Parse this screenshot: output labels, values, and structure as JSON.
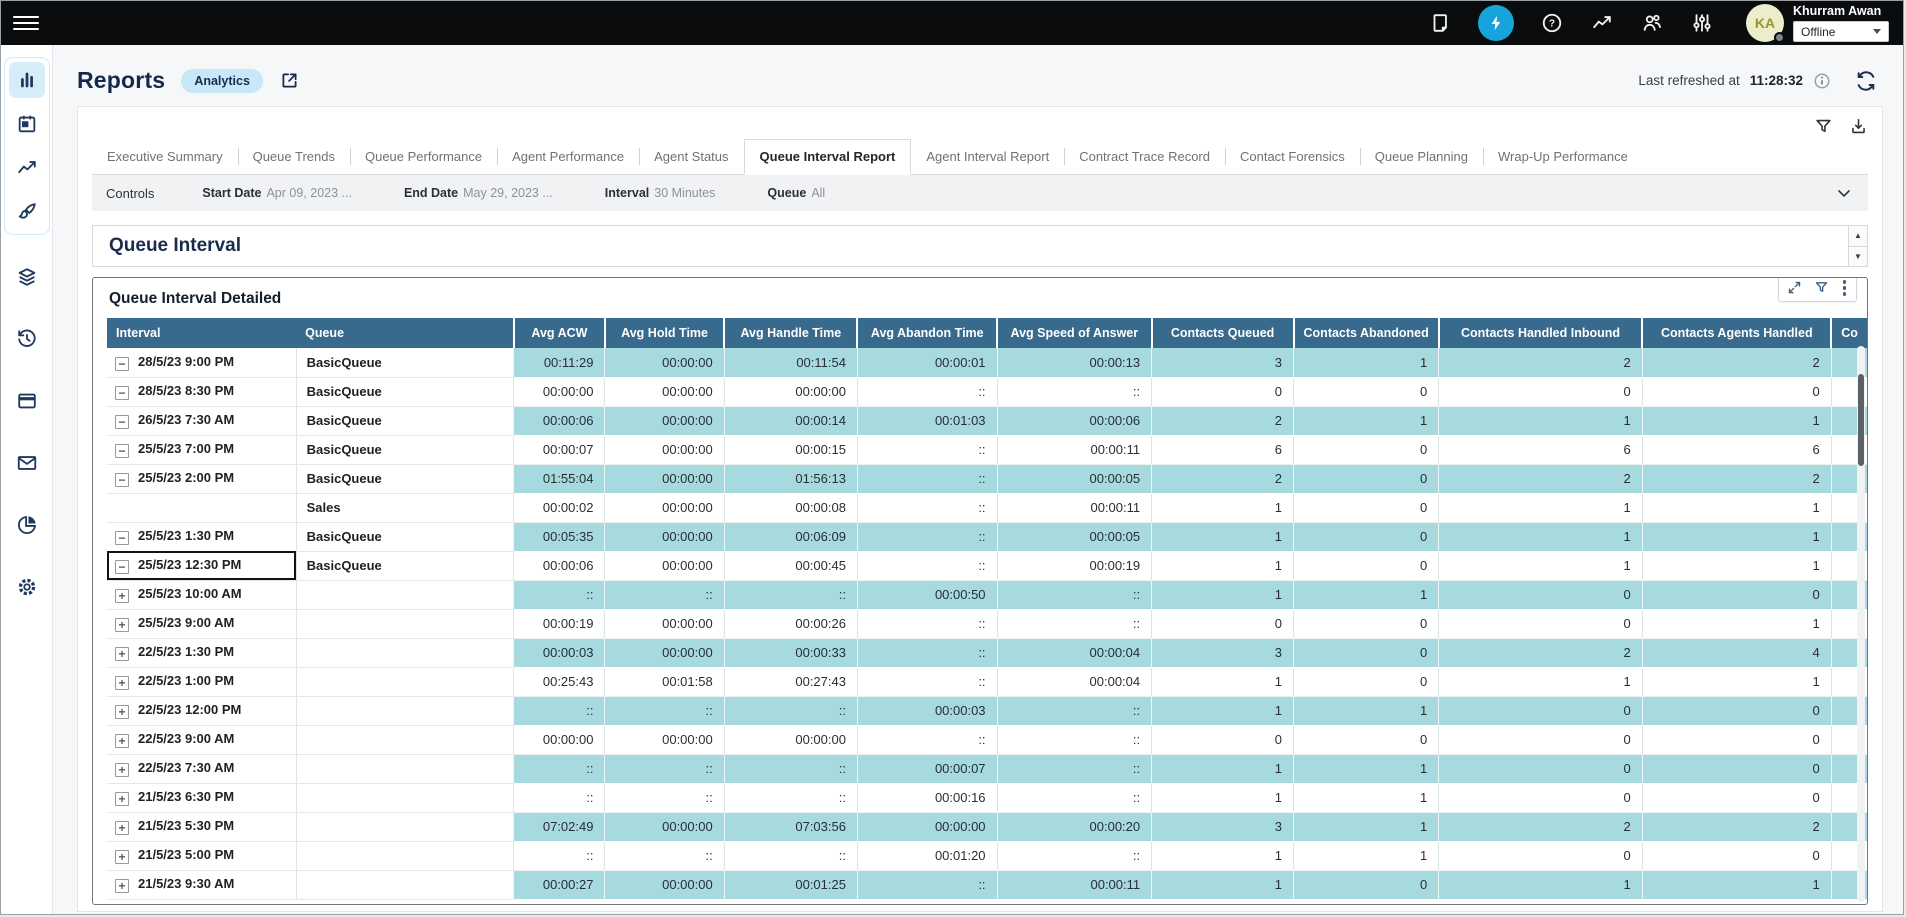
{
  "topbar": {
    "icons": [
      "notes-icon",
      "boost-lightning-icon",
      "help-icon",
      "metrics-icon",
      "users-icon",
      "sliders-icon"
    ],
    "user": {
      "initials": "KA",
      "name": "Khurram Awan",
      "status": "Offline"
    }
  },
  "sidebar": {
    "icons": [
      "bar-chart-icon",
      "calendar-icon",
      "line-chart-icon",
      "design-brush-icon",
      "layers-icon",
      "history-icon",
      "window-icon",
      "mail-icon",
      "pie-chart-icon",
      "gear-icon"
    ]
  },
  "header": {
    "title": "Reports",
    "badge": "Analytics",
    "last_refreshed_label": "Last refreshed at",
    "last_refreshed_time": "11:28:32"
  },
  "tabs": [
    {
      "label": "Executive Summary",
      "active": false
    },
    {
      "label": "Queue Trends",
      "active": false
    },
    {
      "label": "Queue Performance",
      "active": false
    },
    {
      "label": "Agent Performance",
      "active": false
    },
    {
      "label": "Agent Status",
      "active": false
    },
    {
      "label": "Queue Interval Report",
      "active": true
    },
    {
      "label": "Agent Interval Report",
      "active": false
    },
    {
      "label": "Contract Trace Record",
      "active": false
    },
    {
      "label": "Contact Forensics",
      "active": false
    },
    {
      "label": "Queue Planning",
      "active": false
    },
    {
      "label": "Wrap-Up Performance",
      "active": false
    }
  ],
  "controls": {
    "title": "Controls",
    "fields": [
      {
        "label": "Start Date",
        "value": "Apr 09, 2023 ..."
      },
      {
        "label": "End Date",
        "value": "May 29, 2023 ..."
      },
      {
        "label": "Interval",
        "value": "30 Minutes"
      },
      {
        "label": "Queue",
        "value": "All"
      }
    ]
  },
  "section": {
    "title": "Queue Interval"
  },
  "table": {
    "title": "Queue Interval Detailed",
    "columns": [
      "Interval",
      "Queue",
      "Avg ACW",
      "Avg Hold Time",
      "Avg Handle Time",
      "Avg Abandon Time",
      "Avg Speed of Answer",
      "Contacts Queued",
      "Contacts Abandoned",
      "Contacts Handled Inbound",
      "Contacts Agents Handled",
      "Co"
    ],
    "rows": [
      {
        "icon": "minus",
        "interval": "28/5/23 9:00 PM",
        "queue": "BasicQueue",
        "values": [
          "00:11:29",
          "00:00:00",
          "00:11:54",
          "00:00:01",
          "00:00:13",
          "3",
          "1",
          "2",
          "2"
        ],
        "shaded": true,
        "selected": false
      },
      {
        "icon": "minus",
        "interval": "28/5/23 8:30 PM",
        "queue": "BasicQueue",
        "values": [
          "00:00:00",
          "00:00:00",
          "00:00:00",
          "::",
          "::",
          "0",
          "0",
          "0",
          "0"
        ],
        "shaded": false,
        "selected": false
      },
      {
        "icon": "minus",
        "interval": "26/5/23 7:30 AM",
        "queue": "BasicQueue",
        "values": [
          "00:00:06",
          "00:00:00",
          "00:00:14",
          "00:01:03",
          "00:00:06",
          "2",
          "1",
          "1",
          "1"
        ],
        "shaded": true,
        "selected": false
      },
      {
        "icon": "minus",
        "interval": "25/5/23 7:00 PM",
        "queue": "BasicQueue",
        "values": [
          "00:00:07",
          "00:00:00",
          "00:00:15",
          "::",
          "00:00:11",
          "6",
          "0",
          "6",
          "6"
        ],
        "shaded": false,
        "selected": false
      },
      {
        "icon": "minus",
        "interval": "25/5/23 2:00 PM",
        "queue": "BasicQueue",
        "values": [
          "01:55:04",
          "00:00:00",
          "01:56:13",
          "::",
          "00:00:05",
          "2",
          "0",
          "2",
          "2"
        ],
        "shaded": true,
        "selected": false
      },
      {
        "icon": "none",
        "interval": "",
        "queue": "Sales",
        "values": [
          "00:00:02",
          "00:00:00",
          "00:00:08",
          "::",
          "00:00:11",
          "1",
          "0",
          "1",
          "1"
        ],
        "shaded": false,
        "selected": false
      },
      {
        "icon": "minus",
        "interval": "25/5/23 1:30 PM",
        "queue": "BasicQueue",
        "values": [
          "00:05:35",
          "00:00:00",
          "00:06:09",
          "::",
          "00:00:05",
          "1",
          "0",
          "1",
          "1"
        ],
        "shaded": true,
        "selected": false
      },
      {
        "icon": "minus",
        "interval": "25/5/23 12:30 PM",
        "queue": "BasicQueue",
        "values": [
          "00:00:06",
          "00:00:00",
          "00:00:45",
          "::",
          "00:00:19",
          "1",
          "0",
          "1",
          "1"
        ],
        "shaded": false,
        "selected": true
      },
      {
        "icon": "plus",
        "interval": "25/5/23 10:00 AM",
        "queue": "",
        "values": [
          "::",
          "::",
          "::",
          "00:00:50",
          "::",
          "1",
          "1",
          "0",
          "0"
        ],
        "shaded": true,
        "selected": false
      },
      {
        "icon": "plus",
        "interval": "25/5/23 9:00 AM",
        "queue": "",
        "values": [
          "00:00:19",
          "00:00:00",
          "00:00:26",
          "::",
          "::",
          "0",
          "0",
          "0",
          "1"
        ],
        "shaded": false,
        "selected": false
      },
      {
        "icon": "plus",
        "interval": "22/5/23 1:30 PM",
        "queue": "",
        "values": [
          "00:00:03",
          "00:00:00",
          "00:00:33",
          "::",
          "00:00:04",
          "3",
          "0",
          "2",
          "4"
        ],
        "shaded": true,
        "selected": false
      },
      {
        "icon": "plus",
        "interval": "22/5/23 1:00 PM",
        "queue": "",
        "values": [
          "00:25:43",
          "00:01:58",
          "00:27:43",
          "::",
          "00:00:04",
          "1",
          "0",
          "1",
          "1"
        ],
        "shaded": false,
        "selected": false
      },
      {
        "icon": "plus",
        "interval": "22/5/23 12:00 PM",
        "queue": "",
        "values": [
          "::",
          "::",
          "::",
          "00:00:03",
          "::",
          "1",
          "1",
          "0",
          "0"
        ],
        "shaded": true,
        "selected": false
      },
      {
        "icon": "plus",
        "interval": "22/5/23 9:00 AM",
        "queue": "",
        "values": [
          "00:00:00",
          "00:00:00",
          "00:00:00",
          "::",
          "::",
          "0",
          "0",
          "0",
          "0"
        ],
        "shaded": false,
        "selected": false
      },
      {
        "icon": "plus",
        "interval": "22/5/23 7:30 AM",
        "queue": "",
        "values": [
          "::",
          "::",
          "::",
          "00:00:07",
          "::",
          "1",
          "1",
          "0",
          "0"
        ],
        "shaded": true,
        "selected": false
      },
      {
        "icon": "plus",
        "interval": "21/5/23 6:30 PM",
        "queue": "",
        "values": [
          "::",
          "::",
          "::",
          "00:00:16",
          "::",
          "1",
          "1",
          "0",
          "0"
        ],
        "shaded": false,
        "selected": false
      },
      {
        "icon": "plus",
        "interval": "21/5/23 5:30 PM",
        "queue": "",
        "values": [
          "07:02:49",
          "00:00:00",
          "07:03:56",
          "00:00:00",
          "00:00:20",
          "3",
          "1",
          "2",
          "2"
        ],
        "shaded": true,
        "selected": false
      },
      {
        "icon": "plus",
        "interval": "21/5/23 5:00 PM",
        "queue": "",
        "values": [
          "::",
          "::",
          "::",
          "00:01:20",
          "::",
          "1",
          "1",
          "0",
          "0"
        ],
        "shaded": false,
        "selected": false
      },
      {
        "icon": "plus",
        "interval": "21/5/23 9:30 AM",
        "queue": "",
        "values": [
          "00:00:27",
          "00:00:00",
          "00:01:25",
          "::",
          "00:00:11",
          "1",
          "0",
          "1",
          "1"
        ],
        "shaded": true,
        "selected": false
      }
    ]
  },
  "colors": {
    "topbar_bg": "#0b0c0e",
    "accent_blue": "#16a4da",
    "badge_bg": "#c8e7f8",
    "table_header_bg": "#376a8c",
    "row_shade": "#a6dade",
    "heading_navy": "#15294b"
  }
}
